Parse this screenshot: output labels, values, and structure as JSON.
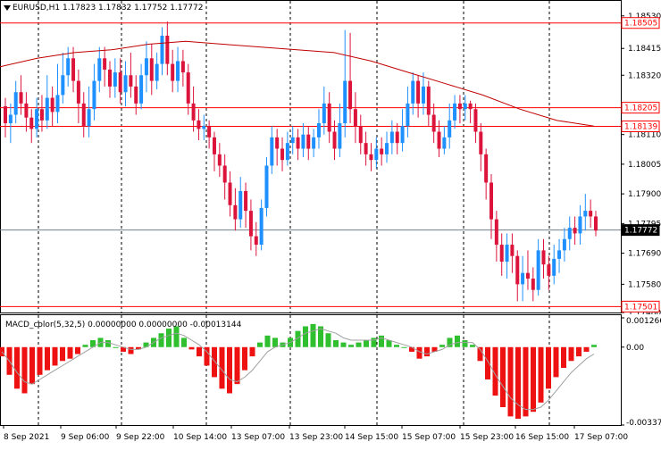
{
  "window": {
    "symbol_header": "EURUSD,H1  1.17823 1.17832 1.17752 1.17772",
    "macd_header": "MACD_color(5,32,5) 0.00000000 0.00000000 -0.00013144"
  },
  "colors": {
    "bull": "#1e90ff",
    "bear": "#dc143c",
    "ma": "#c00000",
    "level_line": "#ff0000",
    "current_price_line": "#708090",
    "label_bg_red": "#ff0000",
    "macd_pos": "#2fbf2f",
    "macd_neg": "#ee1111",
    "signal": "#a0a0a0"
  },
  "price_axis": {
    "ticks": [
      "1.18530",
      "1.18415",
      "1.18320",
      "1.18110",
      "1.18005",
      "1.17900",
      "1.17795",
      "1.17690",
      "1.17580",
      "1.17480"
    ]
  },
  "price_tags": [
    {
      "label": "1.18505",
      "value": 1.18505,
      "style": "red"
    },
    {
      "label": "1.18205",
      "value": 1.18205,
      "style": "red"
    },
    {
      "label": "1.18139",
      "value": 1.18139,
      "style": "red"
    },
    {
      "label": "1.17772",
      "value": 1.17772,
      "style": "current"
    },
    {
      "label": "1.17501",
      "value": 1.17501,
      "style": "red"
    }
  ],
  "time_axis": {
    "labels": [
      "8 Sep 2021",
      "9 Sep 06:00",
      "9 Sep 22:00",
      "10 Sep 14:00",
      "13 Sep 07:00",
      "13 Sep 23:00",
      "14 Sep 15:00",
      "15 Sep 07:00",
      "15 Sep 23:00",
      "16 Sep 15:00",
      "17 Sep 07:00"
    ]
  },
  "macd_axis": {
    "ticks": [
      "0.0012665",
      "0.00",
      "-0.0033722"
    ]
  },
  "chart_data": [
    {
      "type": "candlestick",
      "symbol": "EURUSD",
      "timeframe": "H1",
      "ylim": [
        1.1748,
        1.1858
      ],
      "ohlc": {
        "open": 1.17823,
        "high": 1.17832,
        "low": 1.17752,
        "close": 1.17772
      },
      "moving_average": [
        1.1835,
        1.1838,
        1.184,
        1.1841,
        1.1843,
        1.1844,
        1.1843,
        1.1842,
        1.1841,
        1.184,
        1.1837,
        1.1833,
        1.1829,
        1.1825,
        1.182,
        1.1816,
        1.1814
      ],
      "candles": [
        [
          1.1821,
          1.1815,
          1.1824,
          1.181
        ],
        [
          1.1815,
          1.1818,
          1.1822,
          1.1808
        ],
        [
          1.1818,
          1.1826,
          1.183,
          1.1815
        ],
        [
          1.1826,
          1.1822,
          1.1832,
          1.1818
        ],
        [
          1.1822,
          1.1817,
          1.1826,
          1.1812
        ],
        [
          1.1817,
          1.1813,
          1.182,
          1.1808
        ],
        [
          1.1813,
          1.182,
          1.1824,
          1.181
        ],
        [
          1.182,
          1.1816,
          1.1825,
          1.1812
        ],
        [
          1.1816,
          1.1824,
          1.1832,
          1.1813
        ],
        [
          1.1824,
          1.1819,
          1.1828,
          1.1814
        ],
        [
          1.1819,
          1.1825,
          1.1836,
          1.1815
        ],
        [
          1.1825,
          1.1832,
          1.184,
          1.1822
        ],
        [
          1.1832,
          1.1838,
          1.1842,
          1.1828
        ],
        [
          1.1838,
          1.183,
          1.1842,
          1.1826
        ],
        [
          1.183,
          1.1822,
          1.1834,
          1.1815
        ],
        [
          1.1822,
          1.1814,
          1.1826,
          1.181
        ],
        [
          1.1814,
          1.182,
          1.1828,
          1.181
        ],
        [
          1.182,
          1.183,
          1.1836,
          1.1816
        ],
        [
          1.183,
          1.1838,
          1.1842,
          1.1826
        ],
        [
          1.1838,
          1.1834,
          1.1842,
          1.1828
        ],
        [
          1.1834,
          1.1828,
          1.1837,
          1.1824
        ],
        [
          1.1828,
          1.1833,
          1.1838,
          1.1824
        ],
        [
          1.1833,
          1.1826,
          1.1838,
          1.1822
        ],
        [
          1.1826,
          1.1832,
          1.1837,
          1.1821
        ],
        [
          1.1832,
          1.1828,
          1.184,
          1.1824
        ],
        [
          1.1828,
          1.1822,
          1.1832,
          1.1818
        ],
        [
          1.1822,
          1.1832,
          1.1836,
          1.182
        ],
        [
          1.1832,
          1.1838,
          1.1844,
          1.1826
        ],
        [
          1.1838,
          1.183,
          1.1843,
          1.1825
        ],
        [
          1.183,
          1.1836,
          1.184,
          1.1827
        ],
        [
          1.1836,
          1.1846,
          1.1849,
          1.1832
        ],
        [
          1.1846,
          1.1836,
          1.1851,
          1.1832
        ],
        [
          1.1836,
          1.183,
          1.1841,
          1.1826
        ],
        [
          1.183,
          1.1837,
          1.1842,
          1.1826
        ],
        [
          1.1837,
          1.1833,
          1.1841,
          1.1828
        ],
        [
          1.1833,
          1.1822,
          1.1836,
          1.1818
        ],
        [
          1.1822,
          1.1816,
          1.1828,
          1.1812
        ],
        [
          1.1816,
          1.1813,
          1.182,
          1.1809
        ],
        [
          1.1813,
          1.1814,
          1.1818,
          1.1809
        ],
        [
          1.1814,
          1.181,
          1.1816,
          1.1806
        ],
        [
          1.181,
          1.1804,
          1.1812,
          1.1798
        ],
        [
          1.1804,
          1.18,
          1.1808,
          1.1796
        ],
        [
          1.18,
          1.1794,
          1.1804,
          1.1788
        ],
        [
          1.1794,
          1.1786,
          1.1798,
          1.1782
        ],
        [
          1.1786,
          1.1781,
          1.1792,
          1.1777
        ],
        [
          1.1781,
          1.1791,
          1.1796,
          1.1778
        ],
        [
          1.1791,
          1.1784,
          1.1794,
          1.1778
        ],
        [
          1.1784,
          1.1775,
          1.1788,
          1.177
        ],
        [
          1.1775,
          1.1772,
          1.178,
          1.1768
        ],
        [
          1.1772,
          1.1785,
          1.1788,
          1.177
        ],
        [
          1.1785,
          1.18,
          1.1803,
          1.1782
        ],
        [
          1.18,
          1.181,
          1.1814,
          1.1797
        ],
        [
          1.181,
          1.1806,
          1.1813,
          1.18
        ],
        [
          1.1806,
          1.1802,
          1.181,
          1.1798
        ],
        [
          1.1802,
          1.1808,
          1.1812,
          1.18
        ],
        [
          1.1808,
          1.181,
          1.1814,
          1.1804
        ],
        [
          1.181,
          1.1806,
          1.1813,
          1.1802
        ],
        [
          1.1806,
          1.1811,
          1.1815,
          1.1803
        ],
        [
          1.1811,
          1.1806,
          1.1814,
          1.1802
        ],
        [
          1.1806,
          1.181,
          1.1813,
          1.1803
        ],
        [
          1.181,
          1.1815,
          1.182,
          1.1806
        ],
        [
          1.1815,
          1.1822,
          1.1828,
          1.1811
        ],
        [
          1.1822,
          1.1812,
          1.1826,
          1.1808
        ],
        [
          1.1812,
          1.1806,
          1.1816,
          1.1802
        ],
        [
          1.1806,
          1.1815,
          1.1822,
          1.1803
        ],
        [
          1.1815,
          1.183,
          1.1848,
          1.181
        ],
        [
          1.183,
          1.182,
          1.1847,
          1.1815
        ],
        [
          1.182,
          1.1814,
          1.1826,
          1.1808
        ],
        [
          1.1814,
          1.1808,
          1.1818,
          1.1804
        ],
        [
          1.1808,
          1.1804,
          1.1812,
          1.18
        ],
        [
          1.1804,
          1.1802,
          1.1808,
          1.1798
        ],
        [
          1.1802,
          1.1806,
          1.181,
          1.1799
        ],
        [
          1.1806,
          1.1804,
          1.181,
          1.18
        ],
        [
          1.1804,
          1.1808,
          1.1812,
          1.1801
        ],
        [
          1.1808,
          1.1812,
          1.1816,
          1.1804
        ],
        [
          1.1812,
          1.1808,
          1.1815,
          1.1804
        ],
        [
          1.1808,
          1.1814,
          1.182,
          1.1805
        ],
        [
          1.1814,
          1.1822,
          1.1828,
          1.181
        ],
        [
          1.1822,
          1.183,
          1.1833,
          1.1818
        ],
        [
          1.183,
          1.1822,
          1.1832,
          1.1817
        ],
        [
          1.1822,
          1.1828,
          1.1833,
          1.1818
        ],
        [
          1.1828,
          1.1818,
          1.183,
          1.1814
        ],
        [
          1.1818,
          1.1812,
          1.1822,
          1.1808
        ],
        [
          1.1812,
          1.1806,
          1.1816,
          1.1803
        ],
        [
          1.1806,
          1.181,
          1.1814,
          1.1804
        ],
        [
          1.181,
          1.1816,
          1.1822,
          1.1806
        ],
        [
          1.1816,
          1.1822,
          1.1825,
          1.1813
        ],
        [
          1.1822,
          1.182,
          1.1825,
          1.1815
        ],
        [
          1.182,
          1.1822,
          1.1825,
          1.1816
        ],
        [
          1.1822,
          1.182,
          1.1823,
          1.1815
        ],
        [
          1.182,
          1.1812,
          1.1822,
          1.1808
        ],
        [
          1.1812,
          1.1804,
          1.1815,
          1.1798
        ],
        [
          1.1804,
          1.1794,
          1.1806,
          1.1788
        ],
        [
          1.1794,
          1.1781,
          1.1797,
          1.1774
        ],
        [
          1.1781,
          1.1772,
          1.1784,
          1.1766
        ],
        [
          1.1772,
          1.1766,
          1.1776,
          1.1761
        ],
        [
          1.1766,
          1.1772,
          1.1776,
          1.176
        ],
        [
          1.1772,
          1.1768,
          1.1776,
          1.1762
        ],
        [
          1.1768,
          1.1758,
          1.177,
          1.1752
        ],
        [
          1.1758,
          1.1762,
          1.1768,
          1.1752
        ],
        [
          1.1762,
          1.176,
          1.177,
          1.1756
        ],
        [
          1.176,
          1.1756,
          1.1764,
          1.1752
        ],
        [
          1.1756,
          1.177,
          1.1774,
          1.1754
        ],
        [
          1.177,
          1.1765,
          1.1774,
          1.176
        ],
        [
          1.1765,
          1.1761,
          1.1768,
          1.1756
        ],
        [
          1.1761,
          1.1767,
          1.1772,
          1.1758
        ],
        [
          1.1767,
          1.177,
          1.1774,
          1.1762
        ],
        [
          1.177,
          1.1774,
          1.1778,
          1.1766
        ],
        [
          1.1774,
          1.1778,
          1.1782,
          1.177
        ],
        [
          1.1778,
          1.1776,
          1.1782,
          1.1772
        ],
        [
          1.1776,
          1.1782,
          1.1786,
          1.1772
        ],
        [
          1.1782,
          1.1784,
          1.179,
          1.1777
        ],
        [
          1.1784,
          1.1782,
          1.1788,
          1.1778
        ],
        [
          1.1782,
          1.1777,
          1.1784,
          1.1775
        ]
      ]
    },
    {
      "type": "bar",
      "title": "MACD_color(5,32,5)",
      "ylim": [
        -0.0033722,
        0.0012665
      ],
      "values": [
        -0.0004,
        -0.0012,
        -0.0018,
        -0.002,
        -0.0016,
        -0.0012,
        -0.001,
        -0.0008,
        -0.0006,
        -0.0005,
        -0.0003,
        0.0001,
        0.0003,
        0.0004,
        0.0003,
        0.0,
        -0.0002,
        -0.0003,
        -0.0001,
        0.0002,
        0.0004,
        0.0006,
        0.0008,
        0.0009,
        0.0004,
        -0.0001,
        -0.0004,
        -0.0008,
        -0.0013,
        -0.0018,
        -0.002,
        -0.0016,
        -0.001,
        -0.0004,
        0.0002,
        0.0005,
        0.0004,
        0.0002,
        0.0004,
        0.0007,
        0.0009,
        0.001,
        0.0009,
        0.0006,
        0.0003,
        0.0002,
        0.0001,
        0.0002,
        0.0003,
        0.0004,
        0.0005,
        0.0003,
        0.0001,
        0.0,
        -0.0002,
        -0.0005,
        -0.0004,
        -0.0002,
        0.0001,
        0.0004,
        0.0005,
        0.0003,
        0.0001,
        -0.0006,
        -0.0014,
        -0.0021,
        -0.0026,
        -0.003,
        -0.0031,
        -0.003,
        -0.0028,
        -0.0024,
        -0.0018,
        -0.0013,
        -0.0009,
        -0.0006,
        -0.0004,
        -0.0002,
        0.0001
      ],
      "signal": [
        -0.0002,
        -0.0006,
        -0.0011,
        -0.0015,
        -0.0016,
        -0.0014,
        -0.0012,
        -0.001,
        -0.0008,
        -0.0006,
        -0.0004,
        -0.0002,
        0.0,
        0.0002,
        0.0002,
        0.0001,
        0.0,
        -0.0001,
        -0.0001,
        0.0,
        0.0002,
        0.0004,
        0.0005,
        0.0006,
        0.0005,
        0.0003,
        0.0001,
        -0.0002,
        -0.0006,
        -0.001,
        -0.0014,
        -0.0015,
        -0.0013,
        -0.001,
        -0.0006,
        -0.0002,
        0.0,
        0.0001,
        0.0002,
        0.0004,
        0.0006,
        0.0007,
        0.0008,
        0.0007,
        0.0006,
        0.0004,
        0.0003,
        0.0003,
        0.0003,
        0.0003,
        0.0004,
        0.0003,
        0.0002,
        0.0001,
        0.0,
        -0.0002,
        -0.0003,
        -0.0002,
        -0.0001,
        0.0001,
        0.0002,
        0.0002,
        0.0002,
        -0.0001,
        -0.0006,
        -0.0012,
        -0.0017,
        -0.0022,
        -0.0025,
        -0.0027,
        -0.0027,
        -0.0026,
        -0.0023,
        -0.0019,
        -0.0015,
        -0.0011,
        -0.0008,
        -0.0005,
        -0.0003
      ]
    }
  ]
}
